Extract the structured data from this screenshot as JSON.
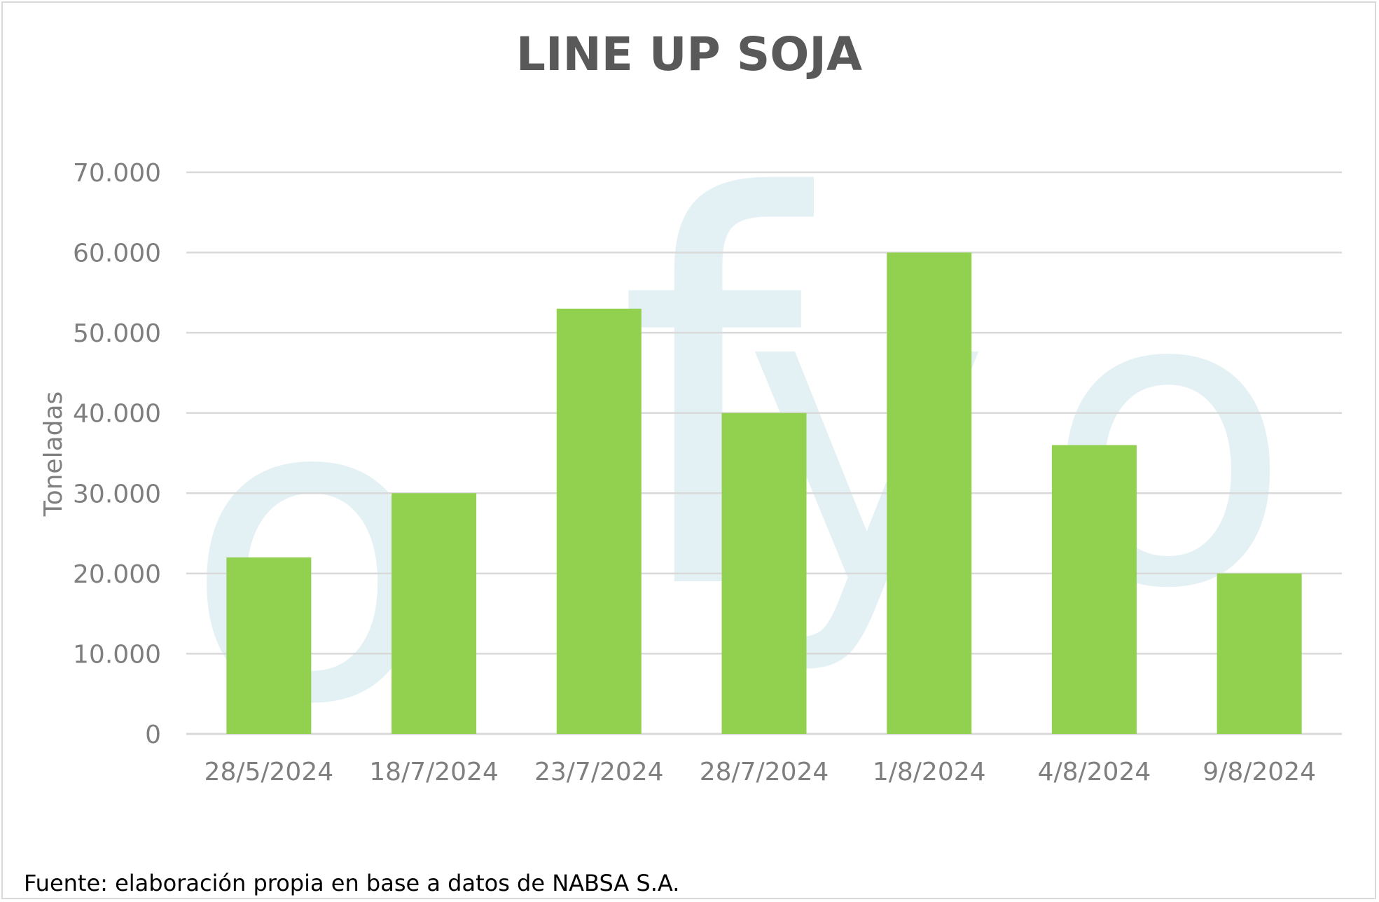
{
  "colors": {
    "bar": "#92d050",
    "gridline": "#d9d9d9",
    "axis_text": "#7f7f7f",
    "title": "#595959",
    "watermark": "#e3f1f5",
    "border": "#d9d9d9"
  },
  "watermark": {
    "text": "ofyo"
  },
  "source": "Fuente: elaboración propia en base a datos de NABSA S.A.",
  "chart_data": {
    "type": "bar",
    "title": "LINE UP SOJA",
    "xlabel": "",
    "ylabel": "Toneladas",
    "categories": [
      "28/5/2024",
      "18/7/2024",
      "23/7/2024",
      "28/7/2024",
      "1/8/2024",
      "4/8/2024",
      "9/8/2024"
    ],
    "values": [
      22000,
      30000,
      53000,
      40000,
      60000,
      36000,
      20000
    ],
    "ylim": [
      0,
      70000
    ],
    "yticks": [
      0,
      10000,
      20000,
      30000,
      40000,
      50000,
      60000,
      70000
    ],
    "ytick_labels": [
      "0",
      "10.000",
      "20.000",
      "30.000",
      "40.000",
      "50.000",
      "60.000",
      "70.000"
    ],
    "grid": true,
    "legend": "none"
  }
}
